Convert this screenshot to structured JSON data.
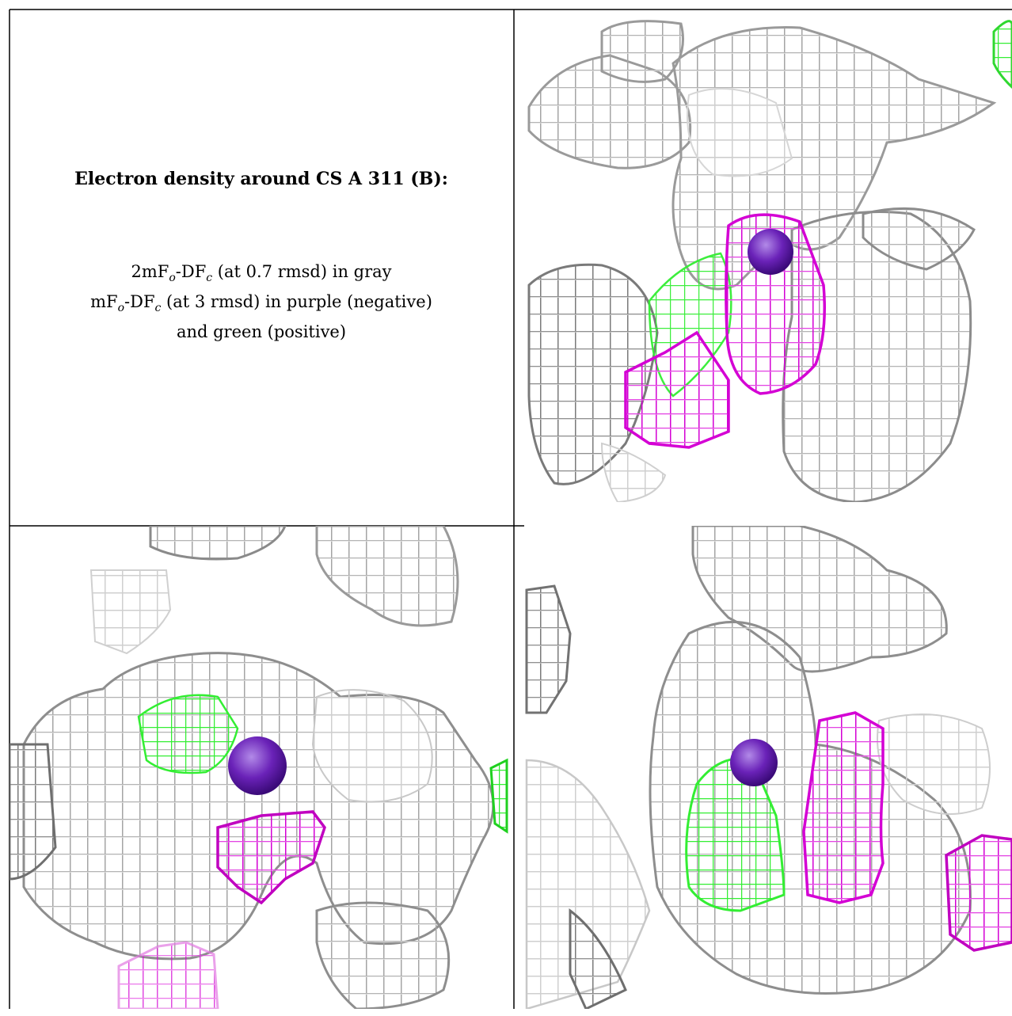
{
  "caption": {
    "title": "Electron density around CS A 311 (B):",
    "line1": {
      "a": "2mF",
      "sub1": "o",
      "b": "-DF",
      "sub2": "c",
      "c": " (at 0.7 rmsd) in gray"
    },
    "line2": {
      "a": "mF",
      "sub1": "o",
      "b": "-DF",
      "sub2": "c",
      "c": " (at 3 rmsd) in purple (negative)"
    },
    "line3": "and green (positive)"
  },
  "colors": {
    "gray_mesh": "#a9a9a9",
    "gray_dark": "#6e6e6e",
    "gray_light": "#d4d4d4",
    "negative": "#d400d4",
    "positive": "#33ee33",
    "atom": "#6a22b8",
    "border": "#000000"
  }
}
